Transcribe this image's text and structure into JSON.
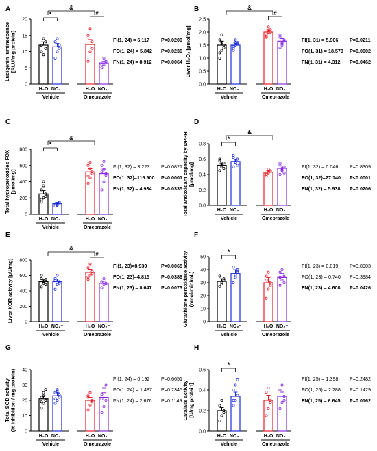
{
  "chart_data": [
    {
      "type": "bar",
      "panel": "A",
      "ylabel": "Lucigenin luminescence [RLU/mg protein]",
      "ylim": [
        0,
        20
      ],
      "yticks": [
        0,
        5,
        10,
        15,
        20
      ],
      "groups": [
        "Vehicle",
        "Omeprazole"
      ],
      "categories": [
        "H2O",
        "NO2⁻",
        "H2O",
        "NO2⁻"
      ],
      "values": [
        12,
        11.5,
        12.2,
        6.5
      ],
      "errors": [
        1.0,
        1.0,
        1.5,
        0.5
      ],
      "points": [
        [
          10,
          14,
          13,
          12,
          9,
          11
        ],
        [
          8,
          10,
          12,
          13,
          14,
          11
        ],
        [
          7,
          10,
          13,
          15,
          17,
          11
        ],
        [
          5,
          6,
          7,
          6,
          8,
          7
        ]
      ],
      "sig_labels": [
        "&",
        "*",
        "#"
      ],
      "stats": [
        {
          "label": "FI(1, 24) = 6.117",
          "p": "P=0.0209",
          "bold": true
        },
        {
          "label": "FO(1, 24) = 5.842",
          "p": "P=0.0236",
          "bold": true
        },
        {
          "label": "FN(1, 24) = 8.912",
          "p": "P=0.0064",
          "bold": true
        }
      ]
    },
    {
      "type": "bar",
      "panel": "B",
      "ylabel": "Liver H₂O₂ [µmol/mg]",
      "ylim": [
        0,
        2.5
      ],
      "yticks": [
        0.0,
        0.5,
        1.0,
        1.5,
        2.0,
        2.5
      ],
      "groups": [
        "Vehicle",
        "Omeprazole"
      ],
      "categories": [
        "H2O",
        "NO2⁻",
        "H2O",
        "NO2⁻"
      ],
      "values": [
        1.5,
        1.5,
        2.0,
        1.65
      ],
      "errors": [
        0.15,
        0.08,
        0.08,
        0.1
      ],
      "points": [
        [
          1.0,
          1.3,
          1.5,
          1.7,
          1.9,
          1.4,
          1.2,
          1.6
        ],
        [
          1.3,
          1.5,
          1.6,
          1.4,
          1.7,
          1.55,
          1.45,
          1.6
        ],
        [
          1.8,
          2.0,
          2.1,
          1.9,
          2.2,
          2.0,
          1.85,
          2.05
        ],
        [
          1.4,
          1.6,
          1.7,
          1.8,
          1.5,
          1.65,
          1.9,
          1.55
        ]
      ],
      "sig_labels": [
        "&",
        "#"
      ],
      "stats": [
        {
          "label": "FI(1, 31) = 5.906",
          "p": "P=0.0211",
          "bold": true
        },
        {
          "label": "FO(1, 31) = 18.570",
          "p": "P=0.0002",
          "bold": true
        },
        {
          "label": "FN(1, 31) = 4.312",
          "p": "P=0.0462",
          "bold": true
        }
      ]
    },
    {
      "type": "bar",
      "panel": "C",
      "ylabel": "Total hydroperoxides FOX [µmol/mg]",
      "ylim": [
        0,
        800
      ],
      "yticks": [
        0,
        200,
        400,
        600,
        800
      ],
      "groups": [
        "Vehicle",
        "Omeprazole"
      ],
      "categories": [
        "H2O",
        "NO2⁻",
        "H2O",
        "NO2⁻"
      ],
      "values": [
        250,
        130,
        520,
        500
      ],
      "errors": [
        40,
        15,
        40,
        55
      ],
      "points": [
        [
          150,
          200,
          250,
          300,
          350,
          220,
          180,
          400
        ],
        [
          100,
          120,
          140,
          130,
          110,
          150,
          125,
          135
        ],
        [
          380,
          450,
          520,
          600,
          640,
          500,
          470,
          560
        ],
        [
          300,
          400,
          500,
          600,
          650,
          480,
          520,
          550
        ]
      ],
      "sig_labels": [
        "&",
        "*"
      ],
      "stats": [
        {
          "label": "FI(1, 32) = 3.223",
          "p": "P=0.0821",
          "bold": false
        },
        {
          "label": "FO(1, 32)=116.900",
          "p": "P<0.0001",
          "bold": true
        },
        {
          "label": "FN(1, 32) = 4.934",
          "p": "P=0.0335",
          "bold": true
        }
      ]
    },
    {
      "type": "bar",
      "panel": "D",
      "ylabel": "Total antioxidant capacity by DPPH [µmol/mg]",
      "ylim": [
        0,
        0.8
      ],
      "yticks": [
        0.0,
        0.2,
        0.4,
        0.6,
        0.8
      ],
      "groups": [
        "Vehicle",
        "Omeprazole"
      ],
      "categories": [
        "H2O",
        "NO2⁻",
        "H2O",
        "NO2⁻"
      ],
      "values": [
        0.52,
        0.57,
        0.43,
        0.48
      ],
      "errors": [
        0.03,
        0.03,
        0.02,
        0.03
      ],
      "points": [
        [
          0.45,
          0.5,
          0.55,
          0.6,
          0.52,
          0.48,
          0.58,
          0.5
        ],
        [
          0.5,
          0.55,
          0.6,
          0.65,
          0.58,
          0.52,
          0.62,
          0.56
        ],
        [
          0.38,
          0.42,
          0.45,
          0.4,
          0.47,
          0.44,
          0.41,
          0.43
        ],
        [
          0.4,
          0.45,
          0.5,
          0.55,
          0.48,
          0.42,
          0.52,
          0.46
        ]
      ],
      "sig_labels": [
        "&",
        "*"
      ],
      "stats": [
        {
          "label": "FI(1, 32) = 0.046",
          "p": "P=0.8309",
          "bold": false
        },
        {
          "label": "FO(1, 32)=27.140",
          "p": "P<0.0001",
          "bold": true
        },
        {
          "label": "FN(1, 32) = 5.938",
          "p": "P=0.0206",
          "bold": true
        }
      ]
    },
    {
      "type": "bar",
      "panel": "E",
      "ylabel": "Liver XOR activity [µU/mg]",
      "ylim": [
        0,
        800
      ],
      "yticks": [
        0,
        200,
        400,
        600,
        800
      ],
      "groups": [
        "Vehicle",
        "Omeprazole"
      ],
      "categories": [
        "H2O",
        "NO2⁻",
        "H2O",
        "NO2⁻"
      ],
      "values": [
        520,
        520,
        640,
        500
      ],
      "errors": [
        25,
        35,
        40,
        25
      ],
      "points": [
        [
          450,
          500,
          550,
          600,
          520,
          480,
          560
        ],
        [
          420,
          480,
          520,
          560,
          600,
          500,
          540
        ],
        [
          550,
          600,
          650,
          700,
          750,
          620,
          580
        ],
        [
          440,
          480,
          500,
          520,
          560,
          490,
          510
        ]
      ],
      "sig_labels": [
        "&",
        "#"
      ],
      "stats": [
        {
          "label": "FI(1, 23)=8.939",
          "p": "P=0.0065",
          "bold": true
        },
        {
          "label": "FO(1, 23)=4.815",
          "p": "P=0.0386",
          "bold": true
        },
        {
          "label": "FN(1, 23) = 8.647",
          "p": "P=0.0073",
          "bold": true
        }
      ]
    },
    {
      "type": "bar",
      "panel": "F",
      "ylabel": "Glutathione peroxidase activity (nmol/min/mL)",
      "ylim": [
        0,
        50
      ],
      "yticks": [
        0,
        10,
        20,
        30,
        40,
        50
      ],
      "groups": [
        "Vehicle",
        "Omeprazole"
      ],
      "categories": [
        "H2O",
        "NO2⁻",
        "H2O",
        "NO2⁻"
      ],
      "values": [
        31,
        37,
        30,
        34
      ],
      "errors": [
        2,
        3,
        4,
        3
      ],
      "points": [
        [
          27,
          30,
          32,
          35,
          29,
          33
        ],
        [
          30,
          34,
          38,
          42,
          36,
          40
        ],
        [
          18,
          25,
          30,
          35,
          38,
          28,
          32
        ],
        [
          28,
          32,
          35,
          38,
          40,
          30,
          34
        ]
      ],
      "sig_labels": [
        "*"
      ],
      "stats": [
        {
          "label": "FI(1, 23) = 0.019",
          "p": "P=0.8903",
          "bold": false
        },
        {
          "label": "FO(1, 23) = 0.740",
          "p": "P=0.3984",
          "bold": false
        },
        {
          "label": "FN(1, 23) = 4.608",
          "p": "P=0.0426",
          "bold": true
        }
      ]
    },
    {
      "type": "bar",
      "panel": "G",
      "ylabel": "Total SOD activity (% inhibition / mg protein)",
      "ylim": [
        0,
        40
      ],
      "yticks": [
        0,
        10,
        20,
        30,
        40
      ],
      "groups": [
        "Vehicle",
        "Omeprazole"
      ],
      "categories": [
        "H2O",
        "NO2⁻",
        "H2O",
        "NO2⁻"
      ],
      "values": [
        21,
        23,
        20,
        22
      ],
      "errors": [
        2,
        2,
        2,
        3
      ],
      "points": [
        [
          15,
          18,
          20,
          22,
          25,
          27,
          19,
          23
        ],
        [
          18,
          20,
          22,
          25,
          27,
          24,
          21,
          26
        ],
        [
          14,
          17,
          20,
          22,
          25,
          19,
          23
        ],
        [
          12,
          16,
          20,
          24,
          28,
          30,
          21
        ]
      ],
      "sig_labels": [],
      "stats": [
        {
          "label": "FI(1, 24) = 0.192",
          "p": "P=0.6651",
          "bold": false
        },
        {
          "label": "FO(1, 24) = 1.487",
          "p": "P=0.2345",
          "bold": false
        },
        {
          "label": "FN(1, 24) = 2.676",
          "p": "P=0.1149",
          "bold": false
        }
      ]
    },
    {
      "type": "bar",
      "panel": "H",
      "ylabel": "Catalase activity [U/mg protein]",
      "ylim": [
        0,
        0.6
      ],
      "yticks": [
        0.0,
        0.2,
        0.4,
        0.6
      ],
      "groups": [
        "Vehicle",
        "Omeprazole"
      ],
      "categories": [
        "H2O",
        "NO2⁻",
        "H2O",
        "NO2⁻"
      ],
      "values": [
        0.2,
        0.34,
        0.3,
        0.34
      ],
      "errors": [
        0.03,
        0.04,
        0.05,
        0.04
      ],
      "points": [
        [
          0.1,
          0.15,
          0.2,
          0.25,
          0.3,
          0.18
        ],
        [
          0.25,
          0.3,
          0.35,
          0.4,
          0.45,
          0.5,
          0.3
        ],
        [
          0.15,
          0.22,
          0.3,
          0.38,
          0.42,
          0.28
        ],
        [
          0.22,
          0.28,
          0.34,
          0.4,
          0.45,
          0.3
        ]
      ],
      "sig_labels": [
        "*"
      ],
      "stats": [
        {
          "label": "FI(1, 25) = 1.398",
          "p": "P=0.2482",
          "bold": false
        },
        {
          "label": "FO(1, 25) = 2.288",
          "p": "P=0.1429",
          "bold": false
        },
        {
          "label": "FN(1, 25) = 6.645",
          "p": "P=0.0162",
          "bold": true
        }
      ]
    }
  ],
  "colors": {
    "h2o_vehicle": "#000000",
    "no2_vehicle": "#1f2fd6",
    "h2o_omeprazole": "#e8202a",
    "no2_omeprazole": "#8a2be2"
  }
}
